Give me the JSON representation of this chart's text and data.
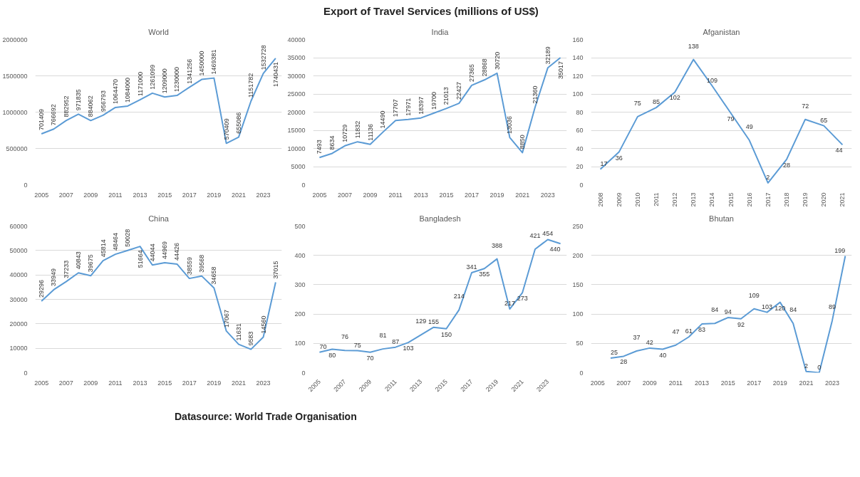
{
  "chart_data": [
    {
      "type": "line",
      "title": "World",
      "annotations": [
        "Export of Travel Services (millions of US$)"
      ],
      "x": [
        2005,
        2006,
        2007,
        2008,
        2009,
        2010,
        2011,
        2012,
        2013,
        2014,
        2015,
        2016,
        2017,
        2018,
        2019,
        2020,
        2021,
        2022,
        2023,
        2024
      ],
      "series": [
        {
          "color": "#5b9bd5",
          "values": [
            701409,
            766692,
            882952,
            971835,
            884062,
            956793,
            1064470,
            1084000,
            1171000,
            1261099,
            1209000,
            1230000,
            1341256,
            1450000,
            1469381,
            570409,
            655086,
            1151782,
            1532728,
            1740431
          ]
        }
      ],
      "xlim": [
        2004.5,
        2024.5
      ],
      "xticks": [
        2005,
        2007,
        2009,
        2011,
        2013,
        2015,
        2017,
        2019,
        2021,
        2023
      ],
      "ylim": [
        0,
        2000000
      ],
      "yticks": [
        0,
        500000,
        1000000,
        1500000,
        2000000
      ],
      "grid": "y",
      "data_labels": true
    },
    {
      "type": "line",
      "title": "India",
      "x": [
        2005,
        2006,
        2007,
        2008,
        2009,
        2010,
        2011,
        2012,
        2013,
        2014,
        2015,
        2016,
        2017,
        2018,
        2019,
        2020,
        2021,
        2022,
        2023,
        2024
      ],
      "series": [
        {
          "color": "#5b9bd5",
          "values": [
            7493,
            8634,
            10729,
            11832,
            11136,
            14490,
            17707,
            17971,
            18397,
            19700,
            21013,
            22427,
            27365,
            28868,
            30720,
            13036,
            8850,
            21360,
            32189,
            35017
          ]
        }
      ],
      "xlim": [
        2004.5,
        2024.5
      ],
      "xticks": [
        2005,
        2007,
        2009,
        2011,
        2013,
        2015,
        2017,
        2019,
        2021,
        2023
      ],
      "ylim": [
        0,
        40000
      ],
      "yticks": [
        0,
        5000,
        10000,
        15000,
        20000,
        25000,
        30000,
        35000,
        40000
      ],
      "grid": "y",
      "data_labels": true
    },
    {
      "type": "line",
      "title": "Afganistan",
      "x": [
        2008,
        2009,
        2010,
        2011,
        2012,
        2013,
        2014,
        2015,
        2016,
        2017,
        2018,
        2019,
        2020,
        2021
      ],
      "series": [
        {
          "color": "#5b9bd5",
          "values": [
            17,
            36,
            75,
            85,
            102,
            138,
            109,
            79,
            49,
            2,
            28,
            72,
            65,
            44
          ]
        }
      ],
      "xlim": [
        2007.5,
        2021.5
      ],
      "xticks": [
        2008,
        2009,
        2010,
        2011,
        2012,
        2013,
        2014,
        2015,
        2016,
        2017,
        2018,
        2019,
        2020,
        2021
      ],
      "ylim": [
        0,
        160
      ],
      "yticks": [
        0,
        20,
        40,
        60,
        80,
        100,
        120,
        140,
        160
      ],
      "grid": "y",
      "data_labels": true
    },
    {
      "type": "line",
      "title": "China",
      "x": [
        2005,
        2006,
        2007,
        2008,
        2009,
        2010,
        2011,
        2012,
        2013,
        2014,
        2015,
        2016,
        2017,
        2018,
        2019,
        2020,
        2021,
        2022,
        2023,
        2024
      ],
      "series": [
        {
          "color": "#5b9bd5",
          "values": [
            29296,
            33949,
            37233,
            40843,
            39675,
            45814,
            48464,
            50028,
            51664,
            44044,
            44969,
            44426,
            38559,
            39568,
            34658,
            17067,
            11631,
            9583,
            14560,
            37015
          ]
        }
      ],
      "xlim": [
        2004.5,
        2024.5
      ],
      "xticks": [
        2005,
        2007,
        2009,
        2011,
        2013,
        2015,
        2017,
        2019,
        2021,
        2023
      ],
      "ylim": [
        0,
        60000
      ],
      "yticks": [
        0,
        10000,
        20000,
        30000,
        40000,
        50000,
        60000
      ],
      "grid": "y",
      "data_labels": true
    },
    {
      "type": "line",
      "title": "Bangladesh",
      "x": [
        2005,
        2006,
        2007,
        2008,
        2009,
        2010,
        2011,
        2012,
        2013,
        2014,
        2015,
        2016,
        2017,
        2018,
        2019,
        2020,
        2021,
        2022,
        2023,
        2024
      ],
      "series": [
        {
          "color": "#5b9bd5",
          "values": [
            70,
            80,
            76,
            75,
            70,
            81,
            87,
            103,
            129,
            155,
            150,
            214,
            341,
            355,
            388,
            217,
            273,
            421,
            454,
            440
          ]
        }
      ],
      "xlim": [
        2004.5,
        2024.5
      ],
      "xticks": [
        2005,
        2007,
        2009,
        2011,
        2013,
        2015,
        2017,
        2019,
        2021,
        2023
      ],
      "ylim": [
        0,
        500
      ],
      "yticks": [
        0,
        100,
        200,
        300,
        400,
        500
      ],
      "grid": "y",
      "data_labels": true
    },
    {
      "type": "line",
      "title": "Bhutan",
      "annotations": [
        "Datasource: World Trade Organisation"
      ],
      "x": [
        2006,
        2007,
        2008,
        2009,
        2010,
        2011,
        2012,
        2013,
        2014,
        2015,
        2016,
        2017,
        2018,
        2019,
        2020,
        2021,
        2022,
        2023,
        2024
      ],
      "series": [
        {
          "color": "#5b9bd5",
          "values": [
            25,
            28,
            37,
            42,
            40,
            47,
            61,
            83,
            84,
            94,
            92,
            109,
            103,
            120,
            84,
            2,
            0,
            89,
            199
          ]
        }
      ],
      "xlim": [
        2004.5,
        2024.5
      ],
      "xticks": [
        2005,
        2007,
        2009,
        2011,
        2013,
        2015,
        2017,
        2019,
        2021,
        2023
      ],
      "ylim": [
        0,
        250
      ],
      "yticks": [
        0,
        50,
        100,
        150,
        200,
        250
      ],
      "grid": "y",
      "data_labels": true
    }
  ]
}
